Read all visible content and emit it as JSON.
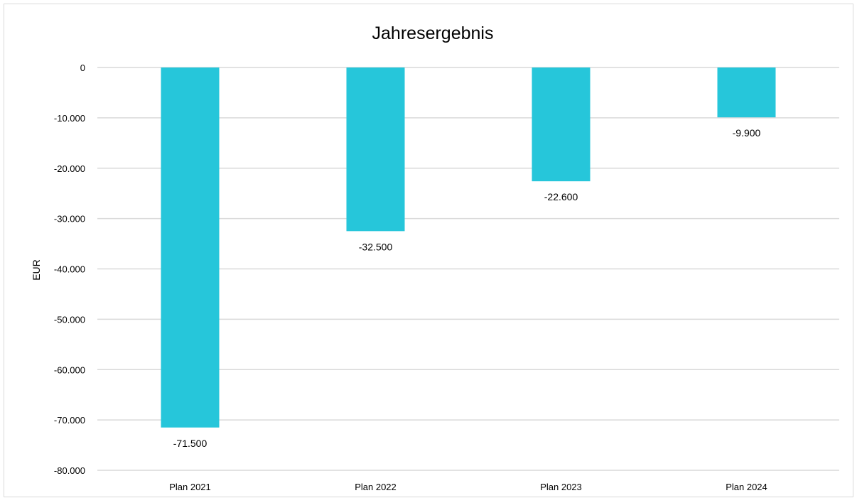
{
  "chart_data": {
    "type": "bar",
    "title": "Jahresergebnis",
    "xlabel": "",
    "ylabel": "EUR",
    "categories": [
      "Plan 2021",
      "Plan 2022",
      "Plan 2023",
      "Plan 2024"
    ],
    "values": [
      -71500,
      -32500,
      -22600,
      -9900
    ],
    "data_labels": [
      "-71.500",
      "-32.500",
      "-22.600",
      "-9.900"
    ],
    "ylim": [
      -80000,
      0
    ],
    "y_ticks": [
      0,
      -10000,
      -20000,
      -30000,
      -40000,
      -50000,
      -60000,
      -70000,
      -80000
    ],
    "y_tick_labels": [
      "0",
      "-10.000",
      "-20.000",
      "-30.000",
      "-40.000",
      "-50.000",
      "-60.000",
      "-70.000",
      "-80.000"
    ],
    "grid": true,
    "legend": "none",
    "colors": {
      "bar": "#26c6da",
      "grid": "#d9d9d9",
      "text": "#000000"
    }
  }
}
